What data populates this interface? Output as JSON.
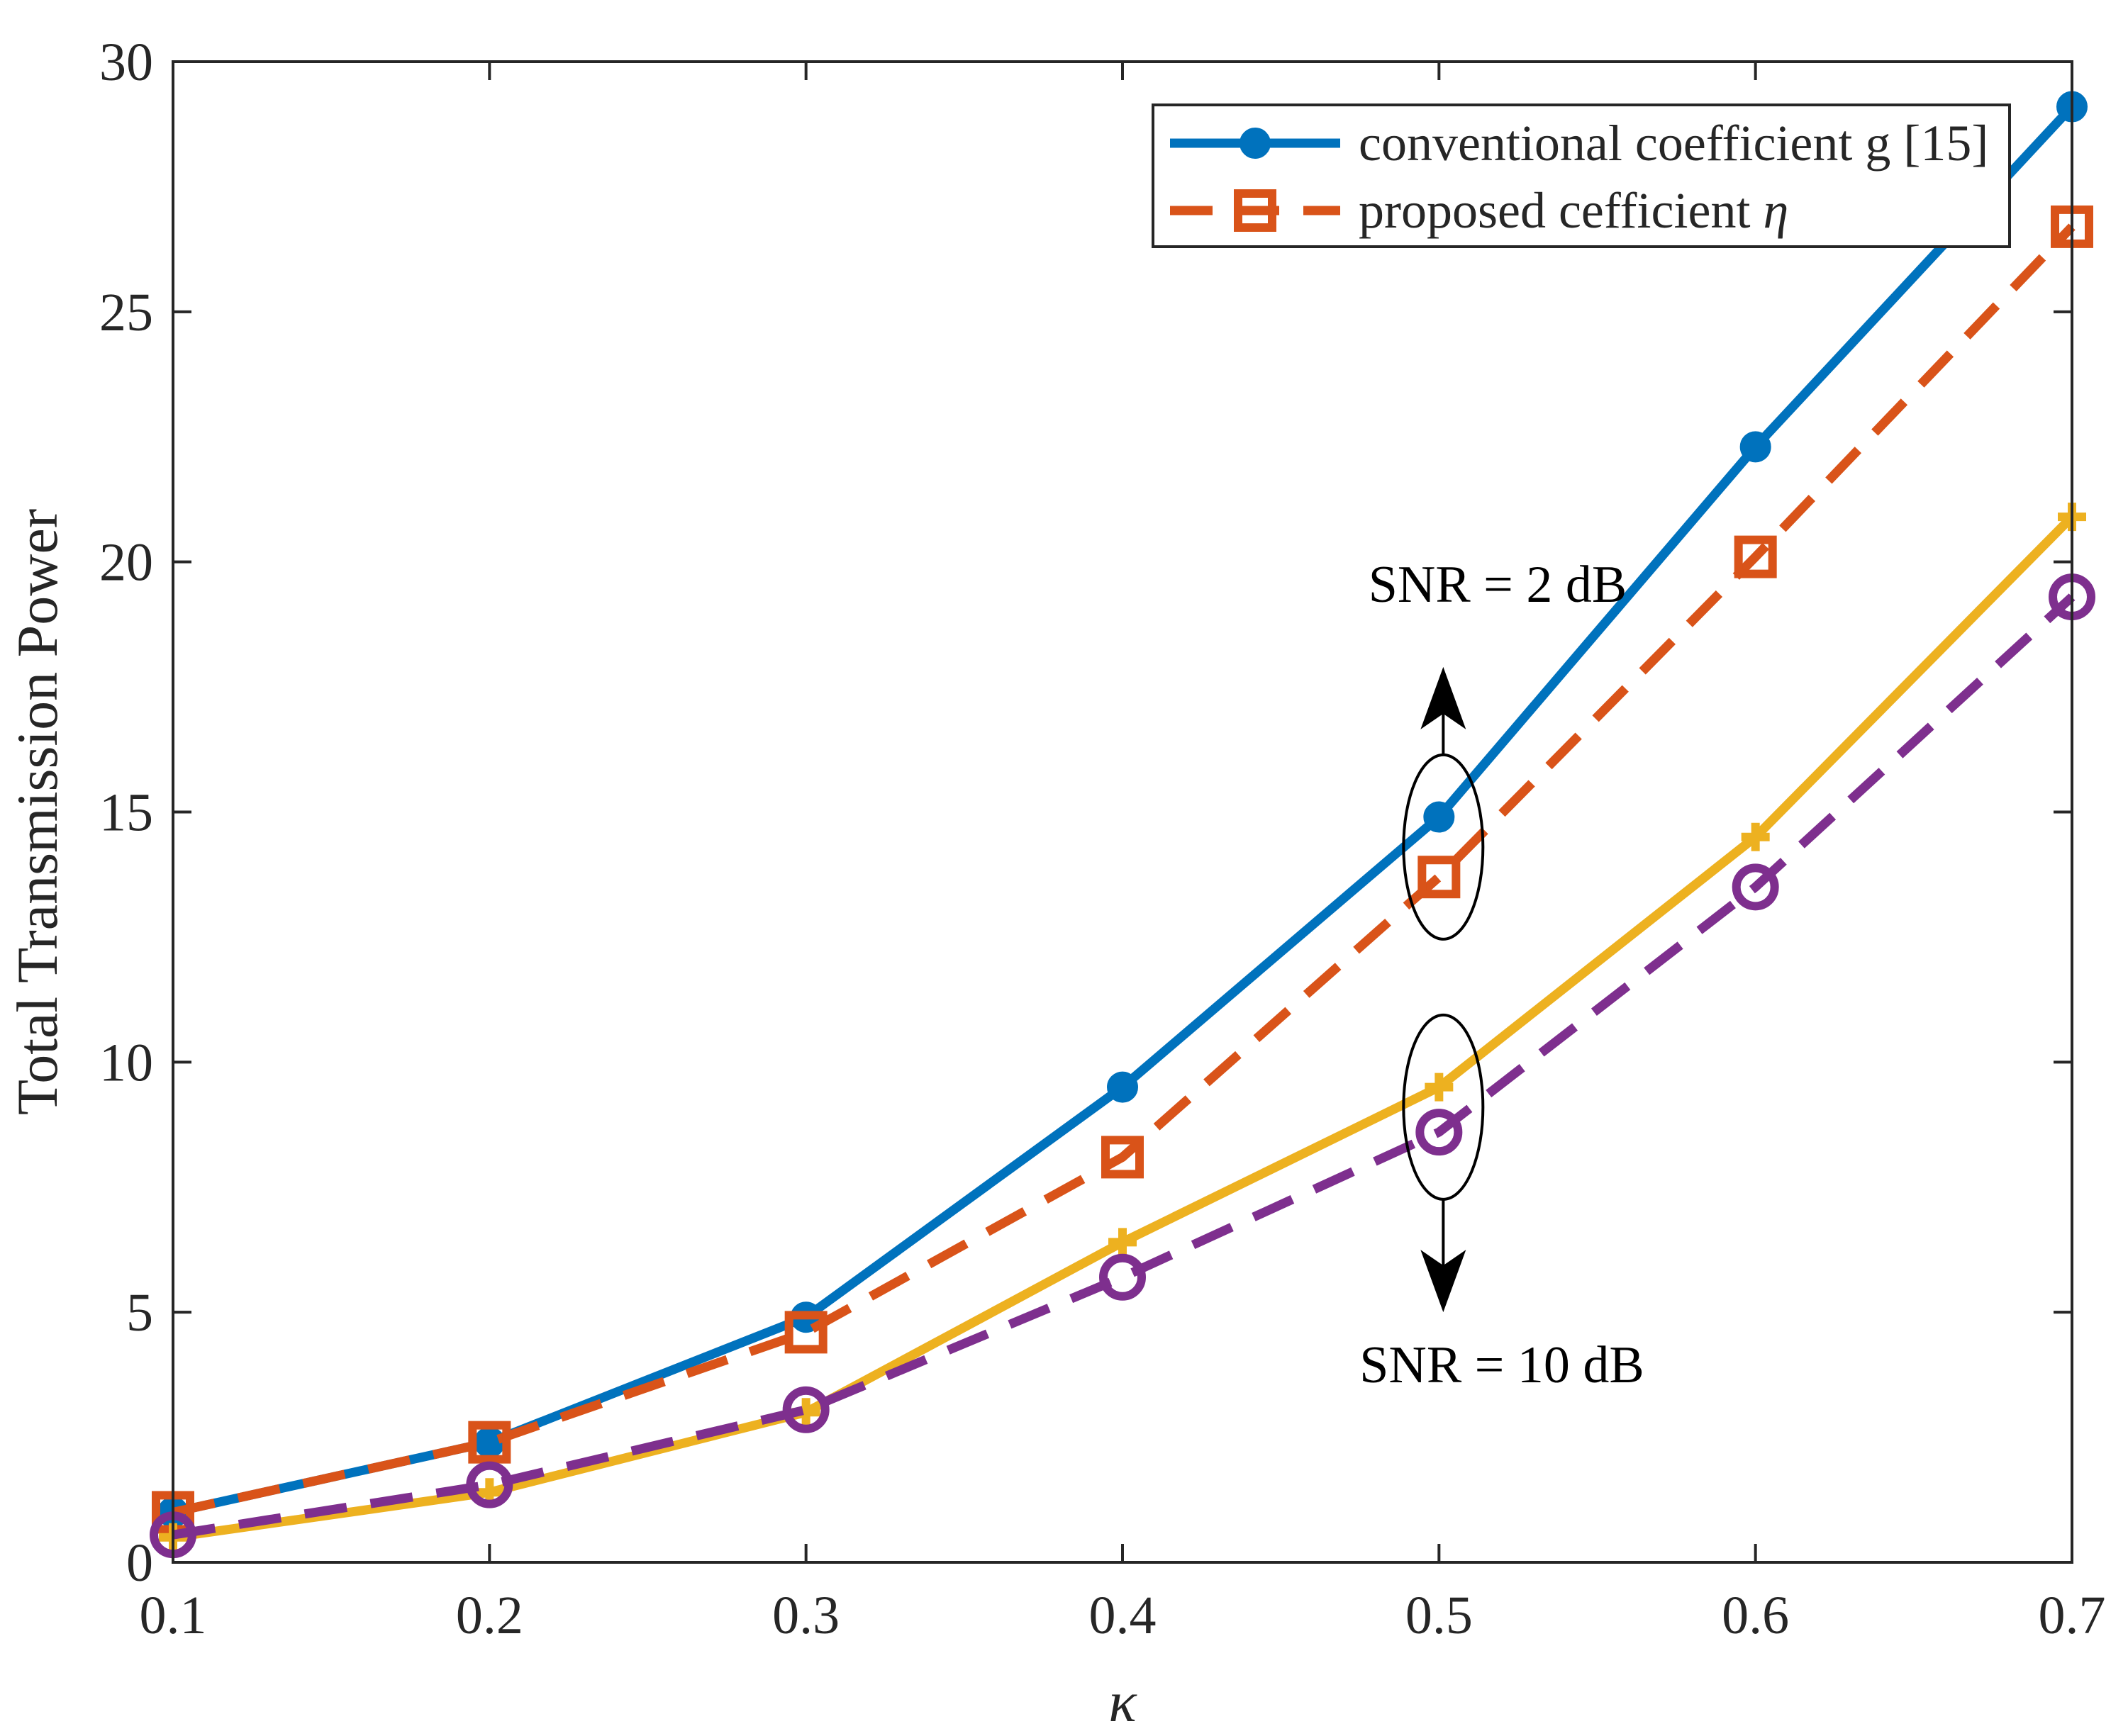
{
  "chart_data": {
    "type": "line",
    "xlabel": "κ",
    "ylabel": "Total Transmission Power",
    "xlim": [
      0.1,
      0.7
    ],
    "ylim": [
      0,
      30
    ],
    "xticks": [
      "0.1",
      "0.2",
      "0.3",
      "0.4",
      "0.5",
      "0.6",
      "0.7"
    ],
    "yticks": [
      "0",
      "5",
      "10",
      "15",
      "20",
      "25",
      "30"
    ],
    "x": [
      0.1,
      0.2,
      0.3,
      0.4,
      0.5,
      0.6,
      0.7
    ],
    "grid": false,
    "legend_position": "top-right",
    "legend": [
      {
        "label_main": "conventional coefficient g [15]",
        "label_symbol": "",
        "color": "#0072BD",
        "line": "solid",
        "marker": "filled-circle"
      },
      {
        "label_main": "proposed cefficient ",
        "label_symbol": "η",
        "color": "#D95319",
        "line": "dashed",
        "marker": "square"
      }
    ],
    "series": [
      {
        "color": "#0072BD",
        "line": "solid",
        "marker": "filled-circle",
        "values": [
          1.0,
          2.4,
          4.9,
          9.5,
          14.9,
          22.3,
          29.1
        ]
      },
      {
        "color": "#D95319",
        "line": "dashed",
        "marker": "square",
        "values": [
          1.0,
          2.4,
          4.6,
          8.1,
          13.7,
          20.1,
          26.7
        ]
      },
      {
        "color": "#EDB120",
        "line": "solid",
        "marker": "plus",
        "values": [
          0.5,
          1.4,
          3.0,
          6.4,
          9.5,
          14.5,
          20.9
        ]
      },
      {
        "color": "#7E2F8E",
        "line": "dashed",
        "marker": "open-circle",
        "values": [
          0.55,
          1.55,
          3.05,
          5.7,
          8.6,
          13.5,
          19.3
        ]
      }
    ],
    "annotations": [
      {
        "text": "SNR = 2 dB",
        "x": 0.5,
        "y": 15.0,
        "direction": "up"
      },
      {
        "text": "SNR = 10 dB",
        "x": 0.5,
        "y": 9.0,
        "direction": "down"
      }
    ]
  }
}
